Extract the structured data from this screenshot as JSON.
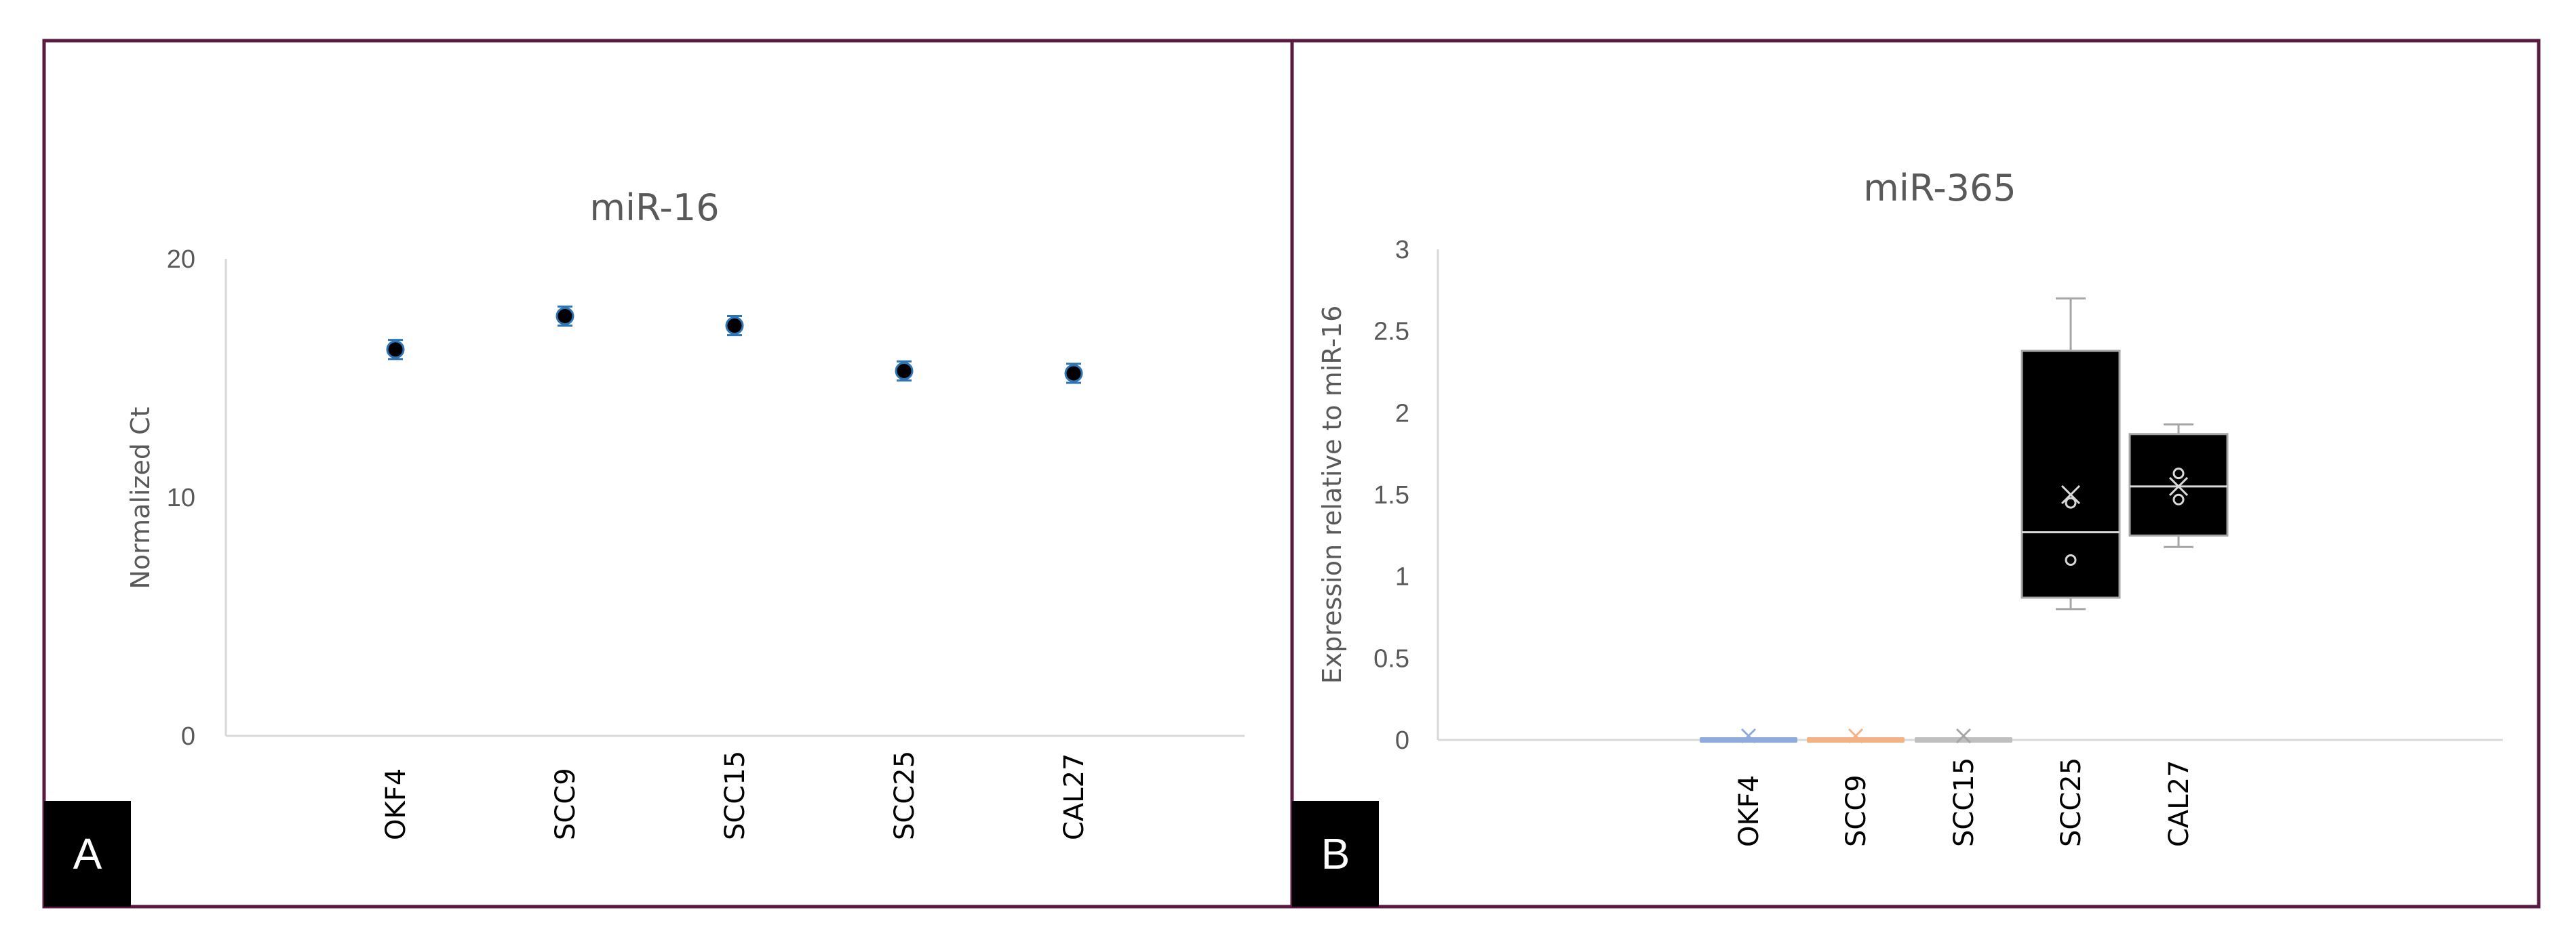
{
  "panels": [
    {
      "label": "A",
      "chart_data": {
        "type": "scatter",
        "title": "miR-16",
        "ylabel": "Normalized Ct",
        "xlabel": "",
        "categories": [
          "OKF4",
          "SCC9",
          "SCC15",
          "SCC25",
          "CAL27"
        ],
        "values": [
          16.2,
          17.6,
          17.2,
          15.3,
          15.2
        ],
        "errors": [
          0.4,
          0.4,
          0.4,
          0.4,
          0.4
        ],
        "ylim": [
          0,
          20
        ],
        "yticks": [
          "0",
          "10",
          "20"
        ],
        "grid": false,
        "marker_color": "#000000",
        "marker_edge_color": "#2e75b6"
      }
    },
    {
      "label": "B",
      "chart_data": {
        "type": "box",
        "title": "miR-365",
        "ylabel": "Expression relative to miR-16",
        "xlabel": "",
        "categories": [
          "OKF4",
          "SCC9",
          "SCC15",
          "SCC25",
          "CAL27"
        ],
        "series": [
          {
            "category": "OKF4",
            "min": 0,
            "q1": 0,
            "median": 0,
            "q3": 0,
            "max": 0,
            "mean": 0,
            "points": [],
            "color": "#8faadc"
          },
          {
            "category": "SCC9",
            "min": 0,
            "q1": 0,
            "median": 0,
            "q3": 0,
            "max": 0,
            "mean": 0,
            "points": [],
            "color": "#f4b183"
          },
          {
            "category": "SCC15",
            "min": 0,
            "q1": 0,
            "median": 0,
            "q3": 0,
            "max": 0,
            "mean": 0,
            "points": [],
            "color": "#bfbfbf"
          },
          {
            "category": "SCC25",
            "min": 0.8,
            "q1": 0.87,
            "median": 1.27,
            "q3": 2.38,
            "max": 2.7,
            "mean": 1.5,
            "points": [
              1.45,
              1.1
            ],
            "color": "#000000"
          },
          {
            "category": "CAL27",
            "min": 1.18,
            "q1": 1.25,
            "median": 1.55,
            "q3": 1.87,
            "max": 1.93,
            "mean": 1.55,
            "points": [
              1.63,
              1.47
            ],
            "color": "#000000"
          }
        ],
        "ylim": [
          0,
          3
        ],
        "yticks": [
          "0",
          "0.5",
          "1",
          "1.5",
          "2",
          "2.5",
          "3"
        ],
        "grid": false
      }
    }
  ],
  "colors": {
    "frame": "#5a1a40",
    "axis": "#d9d9d9",
    "whisker": "#a6a6a6"
  }
}
